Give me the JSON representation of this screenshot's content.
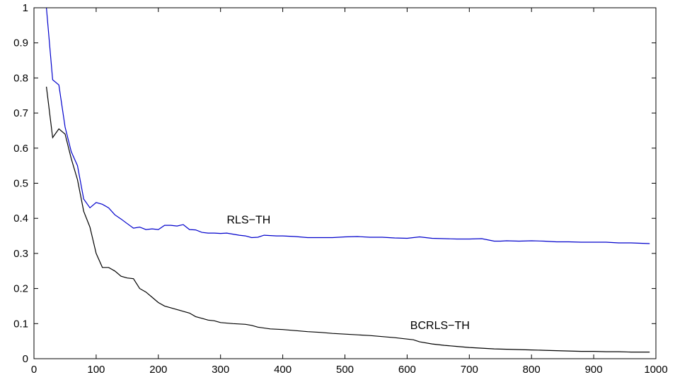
{
  "chart_data": {
    "type": "line",
    "title": "",
    "xlabel": "",
    "ylabel": "",
    "xlim": [
      0,
      1000
    ],
    "ylim": [
      0,
      1
    ],
    "x_ticks": [
      0,
      100,
      200,
      300,
      400,
      500,
      600,
      700,
      800,
      900,
      1000
    ],
    "y_ticks": [
      0,
      0.1,
      0.2,
      0.3,
      0.4,
      0.5,
      0.6,
      0.7,
      0.8,
      0.9,
      1
    ],
    "x_tick_labels": [
      "0",
      "100",
      "200",
      "300",
      "400",
      "500",
      "600",
      "700",
      "800",
      "900",
      "1000"
    ],
    "y_tick_labels": [
      "0",
      "0.1",
      "0.2",
      "0.3",
      "0.4",
      "0.5",
      "0.6",
      "0.7",
      "0.8",
      "0.9",
      "1"
    ],
    "grid": false,
    "series": [
      {
        "name": "RLS−TH",
        "color": "#0000cc",
        "label_at": [
          310,
          0.385
        ],
        "x": [
          20,
          30,
          40,
          50,
          60,
          70,
          80,
          90,
          100,
          110,
          120,
          130,
          140,
          150,
          160,
          170,
          180,
          190,
          200,
          210,
          220,
          230,
          240,
          250,
          260,
          270,
          280,
          290,
          300,
          310,
          320,
          330,
          340,
          350,
          360,
          370,
          380,
          390,
          400,
          420,
          440,
          460,
          480,
          500,
          520,
          540,
          560,
          580,
          600,
          620,
          640,
          660,
          680,
          700,
          720,
          740,
          750,
          760,
          780,
          800,
          820,
          840,
          860,
          880,
          900,
          920,
          940,
          960,
          990
        ],
        "y": [
          1.0,
          0.795,
          0.78,
          0.66,
          0.59,
          0.55,
          0.455,
          0.43,
          0.445,
          0.44,
          0.43,
          0.41,
          0.398,
          0.385,
          0.372,
          0.375,
          0.368,
          0.37,
          0.368,
          0.38,
          0.38,
          0.378,
          0.382,
          0.368,
          0.367,
          0.36,
          0.358,
          0.358,
          0.357,
          0.358,
          0.355,
          0.352,
          0.35,
          0.345,
          0.346,
          0.352,
          0.351,
          0.35,
          0.35,
          0.348,
          0.345,
          0.345,
          0.345,
          0.347,
          0.348,
          0.346,
          0.346,
          0.344,
          0.343,
          0.347,
          0.343,
          0.342,
          0.341,
          0.341,
          0.342,
          0.335,
          0.335,
          0.336,
          0.335,
          0.336,
          0.335,
          0.333,
          0.333,
          0.332,
          0.332,
          0.332,
          0.33,
          0.33,
          0.328
        ]
      },
      {
        "name": "BCRLS−TH",
        "color": "#000000",
        "label_at": [
          605,
          0.085
        ],
        "x": [
          20,
          30,
          40,
          50,
          60,
          70,
          80,
          90,
          100,
          110,
          120,
          130,
          140,
          150,
          160,
          170,
          180,
          190,
          200,
          210,
          220,
          230,
          240,
          250,
          260,
          270,
          280,
          290,
          300,
          320,
          340,
          350,
          360,
          380,
          400,
          420,
          440,
          460,
          480,
          500,
          520,
          540,
          560,
          580,
          600,
          610,
          620,
          640,
          660,
          680,
          700,
          720,
          740,
          760,
          780,
          800,
          820,
          840,
          860,
          880,
          900,
          920,
          940,
          960,
          990
        ],
        "y": [
          0.775,
          0.63,
          0.655,
          0.64,
          0.57,
          0.51,
          0.42,
          0.375,
          0.3,
          0.26,
          0.26,
          0.25,
          0.235,
          0.23,
          0.228,
          0.2,
          0.19,
          0.175,
          0.16,
          0.15,
          0.145,
          0.14,
          0.135,
          0.13,
          0.12,
          0.115,
          0.11,
          0.108,
          0.103,
          0.1,
          0.098,
          0.095,
          0.09,
          0.085,
          0.083,
          0.08,
          0.077,
          0.075,
          0.072,
          0.07,
          0.068,
          0.066,
          0.063,
          0.06,
          0.056,
          0.054,
          0.048,
          0.042,
          0.038,
          0.035,
          0.032,
          0.03,
          0.028,
          0.027,
          0.026,
          0.025,
          0.024,
          0.023,
          0.022,
          0.021,
          0.021,
          0.02,
          0.02,
          0.019,
          0.019
        ]
      }
    ]
  }
}
